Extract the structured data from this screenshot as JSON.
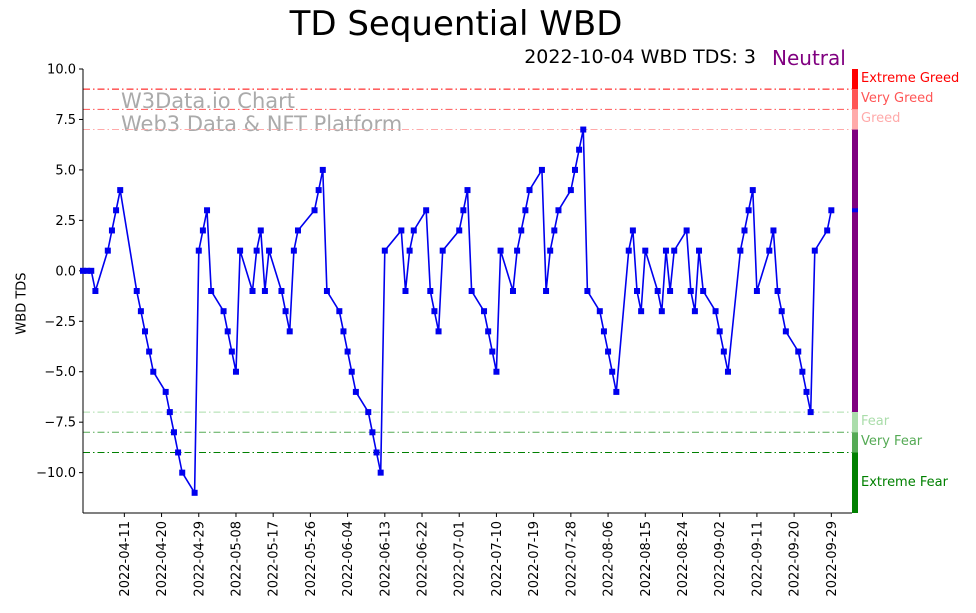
{
  "chart_data": {
    "type": "line",
    "title": "TD Sequential WBD",
    "subtitle": "2022-10-04 WBD TDS: 3",
    "status": "Neutral",
    "status_color": "#800080",
    "xlabel": "",
    "ylabel": "WBD TDS",
    "ylim": [
      -12,
      10
    ],
    "yticks": [
      10.0,
      7.5,
      5.0,
      2.5,
      0.0,
      -2.5,
      -5.0,
      -7.5,
      -10.0
    ],
    "ytick_labels": [
      "10.0",
      "7.5",
      "5.0",
      "2.5",
      "0.0",
      "−2.5",
      "−5.0",
      "−7.5",
      "−10.0"
    ],
    "x_start": "2022-04-01",
    "x_end": "2022-10-04",
    "xtick_labels": [
      "2022-04-11",
      "2022-04-20",
      "2022-04-29",
      "2022-05-08",
      "2022-05-17",
      "2022-05-26",
      "2022-06-04",
      "2022-06-13",
      "2022-06-22",
      "2022-07-01",
      "2022-07-10",
      "2022-07-19",
      "2022-07-28",
      "2022-08-06",
      "2022-08-15",
      "2022-08-24",
      "2022-09-02",
      "2022-09-11",
      "2022-09-20",
      "2022-09-29"
    ],
    "watermark_line1": "W3Data.io Chart",
    "watermark_line2": "Web3 Data & NFT Platform",
    "series": [
      {
        "name": "WBD TDS",
        "color": "#0000ee",
        "points": [
          [
            "2022-04-01",
            0
          ],
          [
            "2022-04-02",
            0
          ],
          [
            "2022-04-03",
            0
          ],
          [
            "2022-04-04",
            -1
          ],
          [
            "2022-04-07",
            1
          ],
          [
            "2022-04-08",
            2
          ],
          [
            "2022-04-09",
            3
          ],
          [
            "2022-04-10",
            4
          ],
          [
            "2022-04-14",
            -1
          ],
          [
            "2022-04-15",
            -2
          ],
          [
            "2022-04-16",
            -3
          ],
          [
            "2022-04-17",
            -4
          ],
          [
            "2022-04-18",
            -5
          ],
          [
            "2022-04-21",
            -6
          ],
          [
            "2022-04-22",
            -7
          ],
          [
            "2022-04-23",
            -8
          ],
          [
            "2022-04-24",
            -9
          ],
          [
            "2022-04-25",
            -10
          ],
          [
            "2022-04-28",
            -11
          ],
          [
            "2022-04-29",
            1
          ],
          [
            "2022-04-30",
            2
          ],
          [
            "2022-05-01",
            3
          ],
          [
            "2022-05-02",
            -1
          ],
          [
            "2022-05-05",
            -2
          ],
          [
            "2022-05-06",
            -3
          ],
          [
            "2022-05-07",
            -4
          ],
          [
            "2022-05-08",
            -5
          ],
          [
            "2022-05-09",
            1
          ],
          [
            "2022-05-12",
            -1
          ],
          [
            "2022-05-13",
            1
          ],
          [
            "2022-05-14",
            2
          ],
          [
            "2022-05-15",
            -1
          ],
          [
            "2022-05-16",
            1
          ],
          [
            "2022-05-19",
            -1
          ],
          [
            "2022-05-20",
            -2
          ],
          [
            "2022-05-21",
            -3
          ],
          [
            "2022-05-22",
            1
          ],
          [
            "2022-05-23",
            2
          ],
          [
            "2022-05-27",
            3
          ],
          [
            "2022-05-28",
            4
          ],
          [
            "2022-05-29",
            5
          ],
          [
            "2022-05-30",
            -1
          ],
          [
            "2022-06-02",
            -2
          ],
          [
            "2022-06-03",
            -3
          ],
          [
            "2022-06-04",
            -4
          ],
          [
            "2022-06-05",
            -5
          ],
          [
            "2022-06-06",
            -6
          ],
          [
            "2022-06-09",
            -7
          ],
          [
            "2022-06-10",
            -8
          ],
          [
            "2022-06-11",
            -9
          ],
          [
            "2022-06-12",
            -10
          ],
          [
            "2022-06-13",
            1
          ],
          [
            "2022-06-17",
            2
          ],
          [
            "2022-06-18",
            -1
          ],
          [
            "2022-06-19",
            1
          ],
          [
            "2022-06-20",
            2
          ],
          [
            "2022-06-23",
            3
          ],
          [
            "2022-06-24",
            -1
          ],
          [
            "2022-06-25",
            -2
          ],
          [
            "2022-06-26",
            -3
          ],
          [
            "2022-06-27",
            1
          ],
          [
            "2022-07-01",
            2
          ],
          [
            "2022-07-02",
            3
          ],
          [
            "2022-07-03",
            4
          ],
          [
            "2022-07-04",
            -1
          ],
          [
            "2022-07-07",
            -2
          ],
          [
            "2022-07-08",
            -3
          ],
          [
            "2022-07-09",
            -4
          ],
          [
            "2022-07-10",
            -5
          ],
          [
            "2022-07-11",
            1
          ],
          [
            "2022-07-14",
            -1
          ],
          [
            "2022-07-15",
            1
          ],
          [
            "2022-07-16",
            2
          ],
          [
            "2022-07-17",
            3
          ],
          [
            "2022-07-18",
            4
          ],
          [
            "2022-07-21",
            5
          ],
          [
            "2022-07-22",
            -1
          ],
          [
            "2022-07-23",
            1
          ],
          [
            "2022-07-24",
            2
          ],
          [
            "2022-07-25",
            3
          ],
          [
            "2022-07-28",
            4
          ],
          [
            "2022-07-29",
            5
          ],
          [
            "2022-07-30",
            6
          ],
          [
            "2022-07-31",
            7
          ],
          [
            "2022-08-01",
            -1
          ],
          [
            "2022-08-04",
            -2
          ],
          [
            "2022-08-05",
            -3
          ],
          [
            "2022-08-06",
            -4
          ],
          [
            "2022-08-07",
            -5
          ],
          [
            "2022-08-08",
            -6
          ],
          [
            "2022-08-11",
            1
          ],
          [
            "2022-08-12",
            2
          ],
          [
            "2022-08-13",
            -1
          ],
          [
            "2022-08-14",
            -2
          ],
          [
            "2022-08-15",
            1
          ],
          [
            "2022-08-18",
            -1
          ],
          [
            "2022-08-19",
            -2
          ],
          [
            "2022-08-20",
            1
          ],
          [
            "2022-08-21",
            -1
          ],
          [
            "2022-08-22",
            1
          ],
          [
            "2022-08-25",
            2
          ],
          [
            "2022-08-26",
            -1
          ],
          [
            "2022-08-27",
            -2
          ],
          [
            "2022-08-28",
            1
          ],
          [
            "2022-08-29",
            -1
          ],
          [
            "2022-09-01",
            -2
          ],
          [
            "2022-09-02",
            -3
          ],
          [
            "2022-09-03",
            -4
          ],
          [
            "2022-09-04",
            -5
          ],
          [
            "2022-09-07",
            1
          ],
          [
            "2022-09-08",
            2
          ],
          [
            "2022-09-09",
            3
          ],
          [
            "2022-09-10",
            4
          ],
          [
            "2022-09-11",
            -1
          ],
          [
            "2022-09-14",
            1
          ],
          [
            "2022-09-15",
            2
          ],
          [
            "2022-09-16",
            -1
          ],
          [
            "2022-09-17",
            -2
          ],
          [
            "2022-09-18",
            -3
          ],
          [
            "2022-09-21",
            -4
          ],
          [
            "2022-09-22",
            -5
          ],
          [
            "2022-09-23",
            -6
          ],
          [
            "2022-09-24",
            -7
          ],
          [
            "2022-09-25",
            1
          ],
          [
            "2022-09-28",
            2
          ],
          [
            "2022-09-29",
            3
          ]
        ]
      }
    ],
    "bands": [
      {
        "label": "Extreme Greed",
        "level": 9,
        "color": "#ff0000",
        "range": [
          9,
          10
        ]
      },
      {
        "label": "Very Greed",
        "level": 8,
        "color": "#ff5555",
        "range": [
          8,
          9
        ]
      },
      {
        "label": "Greed",
        "level": 7,
        "color": "#ffaaaa",
        "range": [
          7,
          8
        ]
      },
      {
        "label": "Fear",
        "level": -7,
        "color": "#aaddaa",
        "range": [
          -8,
          -7
        ]
      },
      {
        "label": "Very Fear",
        "level": -8,
        "color": "#55aa55",
        "range": [
          -9,
          -8
        ]
      },
      {
        "label": "Extreme Fear",
        "level": -9,
        "color": "#008000",
        "range": [
          -12,
          -9
        ]
      }
    ],
    "neutral_band": {
      "range": [
        -7,
        7
      ],
      "color": "#800080"
    },
    "current_marker": {
      "date": "2022-10-04",
      "value": 3,
      "color": "#0000ee"
    }
  }
}
